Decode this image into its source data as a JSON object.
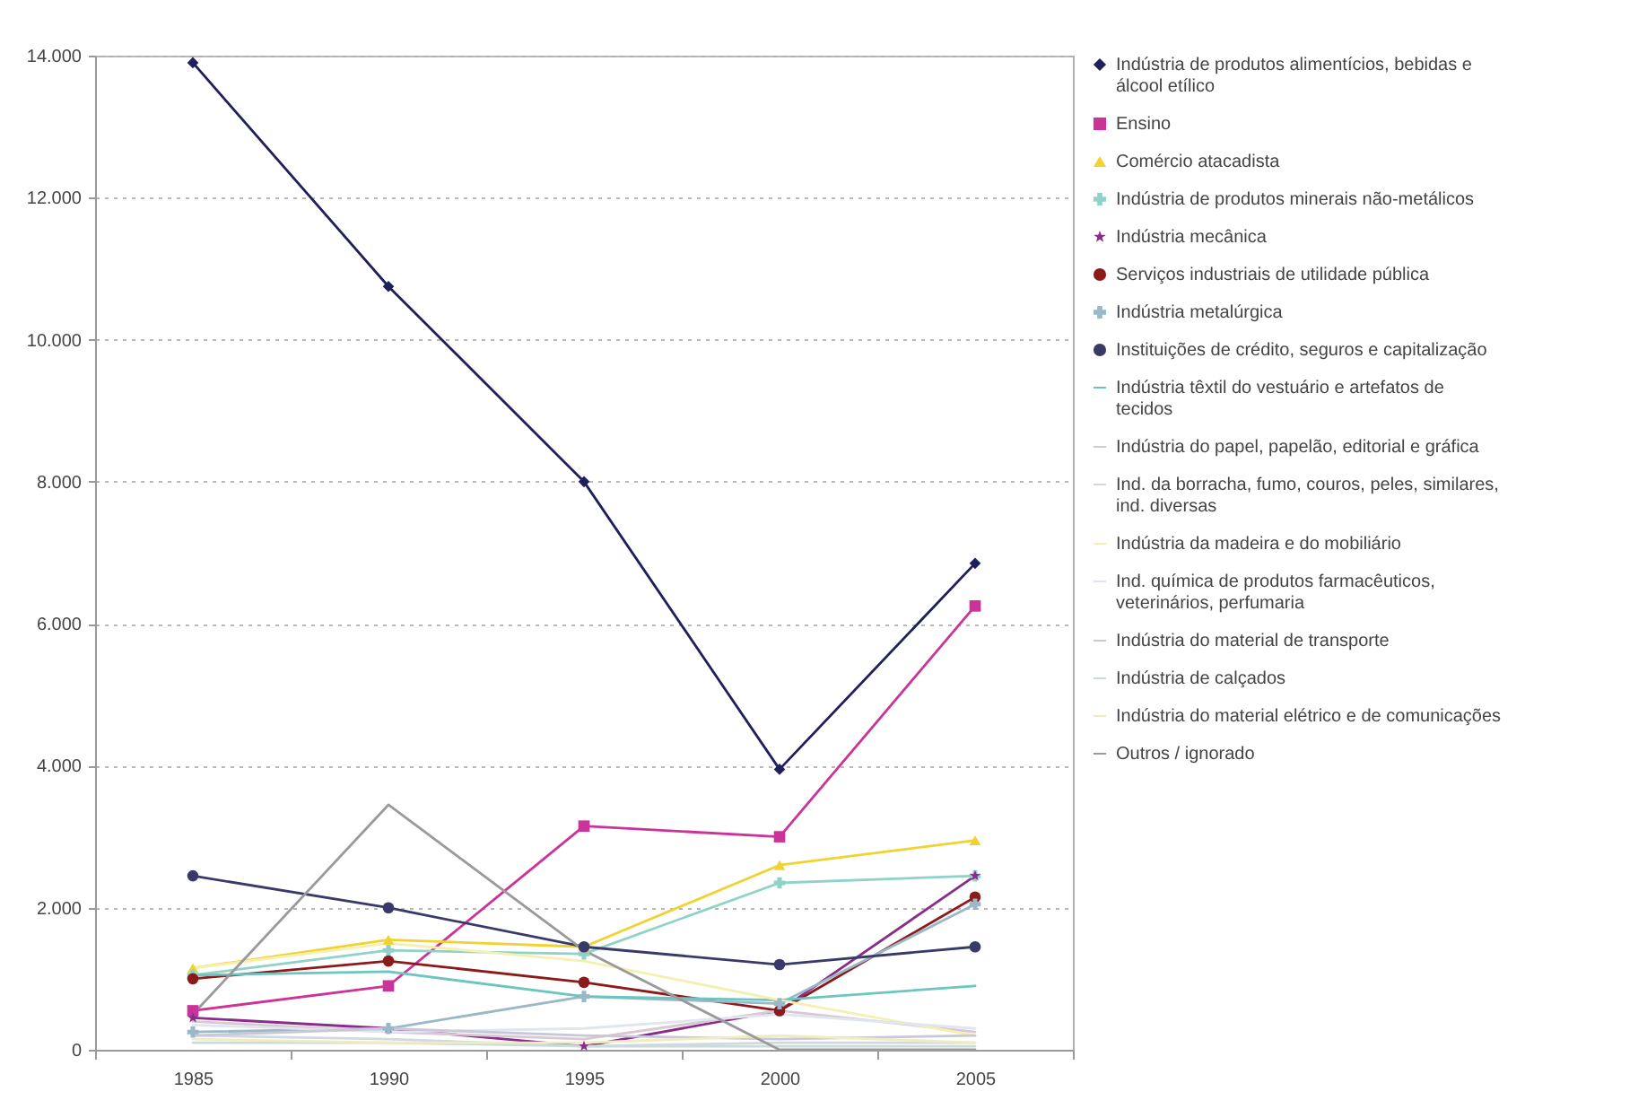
{
  "chart_data": {
    "type": "line",
    "categories": [
      "1985",
      "1990",
      "1995",
      "2000",
      "2005"
    ],
    "ylim": [
      0,
      14000
    ],
    "yticks": [
      0,
      {
        "value": 2000,
        "label": "2.000"
      },
      {
        "value": 4000,
        "label": "4.000"
      },
      {
        "value": 6000,
        "label": "6.000"
      },
      {
        "value": 8000,
        "label": "8.000"
      },
      {
        "value": 10000,
        "label": "10.000"
      },
      {
        "value": 12000,
        "label": "12.000"
      },
      {
        "value": 14000,
        "label": "14.000"
      }
    ],
    "grid": "y",
    "legend": "right",
    "series": [
      {
        "name": "Indústria de produtos alimentícios, bebidas e álcool etílico",
        "color": "#1f1f5c",
        "marker": "diamond",
        "values": [
          13900,
          10750,
          8000,
          3950,
          6850
        ]
      },
      {
        "name": "Ensino",
        "color": "#cc3399",
        "marker": "square",
        "values": [
          550,
          900,
          3150,
          3000,
          6250
        ]
      },
      {
        "name": "Comércio atacadista",
        "color": "#f2d230",
        "marker": "triangle",
        "values": [
          1150,
          1550,
          1450,
          2600,
          2950
        ]
      },
      {
        "name": "Indústria de produtos minerais não-metálicos",
        "color": "#8fd3c8",
        "marker": "cross",
        "values": [
          1050,
          1400,
          1350,
          2350,
          2450
        ]
      },
      {
        "name": "Indústria mecânica",
        "color": "#8a2c8a",
        "marker": "star",
        "values": [
          450,
          300,
          50,
          550,
          2450
        ]
      },
      {
        "name": "Serviços industriais de utilidade pública",
        "color": "#8b1a1a",
        "marker": "circle",
        "values": [
          1000,
          1250,
          950,
          550,
          2150
        ]
      },
      {
        "name": "Indústria metalúrgica",
        "color": "#9ab8c8",
        "marker": "cross",
        "values": [
          250,
          300,
          750,
          650,
          2050
        ]
      },
      {
        "name": "Instituições de crédito, seguros e capitalização",
        "color": "#3a3a6a",
        "marker": "circle",
        "values": [
          2450,
          2000,
          1450,
          1200,
          1450
        ]
      },
      {
        "name": "Indústria têxtil do vestuário e artefatos de tecidos",
        "color": "#6cc5c0",
        "marker": "none",
        "values": [
          1050,
          1100,
          750,
          700,
          900
        ]
      },
      {
        "name": "Indústria do papel, papelão, editorial e gráfica",
        "color": "#d9c8d4",
        "marker": "none",
        "values": [
          400,
          250,
          150,
          550,
          250
        ]
      },
      {
        "name": "Ind. da borracha, fumo, couros, peles, similares, ind. diversas",
        "color": "#d0d8e0",
        "marker": "none",
        "values": [
          200,
          150,
          50,
          100,
          100
        ]
      },
      {
        "name": "Indústria da madeira e do mobiliário",
        "color": "#f5f0b0",
        "marker": "none",
        "values": [
          1150,
          1500,
          1250,
          700,
          200
        ]
      },
      {
        "name": "Ind. química de produtos farmacêuticos, veterinários, perfumaria",
        "color": "#dfe6f0",
        "marker": "none",
        "values": [
          350,
          250,
          300,
          500,
          300
        ]
      },
      {
        "name": "Indústria do material de transporte",
        "color": "#c8c8d8",
        "marker": "none",
        "values": [
          200,
          300,
          200,
          150,
          200
        ]
      },
      {
        "name": "Indústria de calçados",
        "color": "#c8dcdc",
        "marker": "none",
        "values": [
          100,
          100,
          50,
          50,
          50
        ]
      },
      {
        "name": "Indústria do material elétrico e de comunicações",
        "color": "#f0ecc0",
        "marker": "none",
        "values": [
          150,
          100,
          100,
          200,
          100
        ]
      },
      {
        "name": "Outros / ignorado",
        "color": "#9a9a9a",
        "marker": "none",
        "values": [
          500,
          3450,
          1400,
          0,
          0
        ]
      }
    ]
  }
}
